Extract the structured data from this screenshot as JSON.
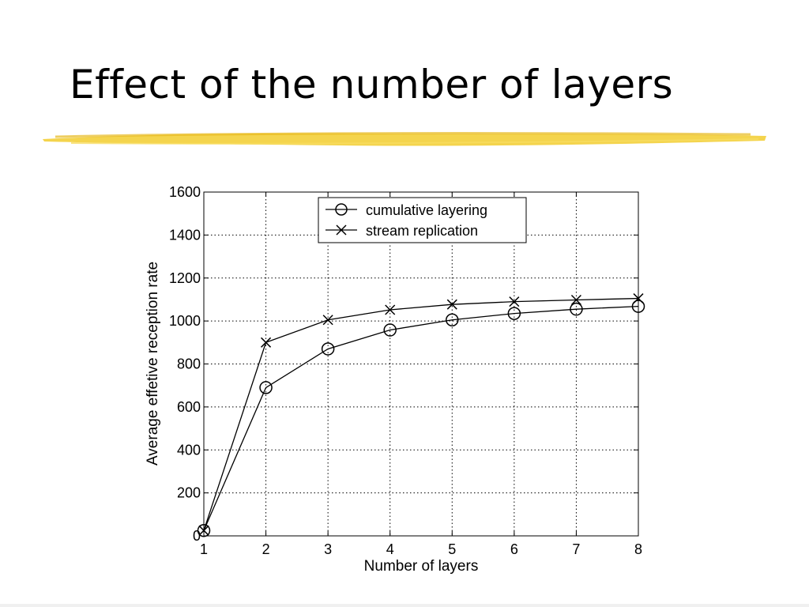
{
  "slide": {
    "title": "Effect of the number of layers",
    "accent_color": "#f2cc2e"
  },
  "chart_data": {
    "type": "line",
    "x": [
      1,
      2,
      3,
      4,
      5,
      6,
      7,
      8
    ],
    "xlabel": "Number of layers",
    "ylabel": "Average effetive reception rate",
    "xlim": [
      1,
      8
    ],
    "ylim": [
      0,
      1600
    ],
    "xticks": [
      1,
      2,
      3,
      4,
      5,
      6,
      7,
      8
    ],
    "yticks": [
      0,
      200,
      400,
      600,
      800,
      1000,
      1200,
      1400,
      1600
    ],
    "grid": true,
    "legend_position": "top-right",
    "series": [
      {
        "name": "cumulative layering",
        "marker": "circle",
        "values": [
          25,
          690,
          870,
          958,
          1005,
          1035,
          1055,
          1068
        ]
      },
      {
        "name": "stream replication",
        "marker": "x",
        "values": [
          25,
          900,
          1005,
          1052,
          1077,
          1090,
          1098,
          1105
        ]
      }
    ]
  }
}
